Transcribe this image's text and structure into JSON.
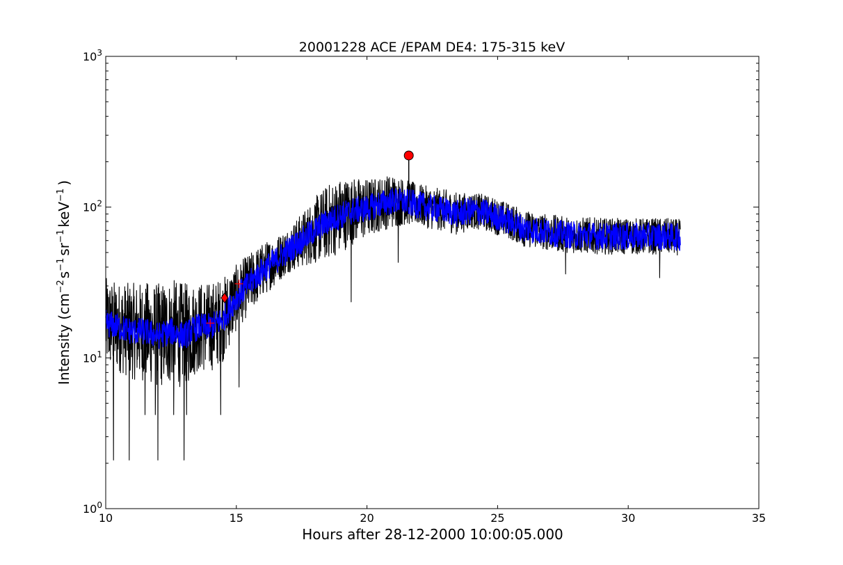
{
  "chart_data": {
    "type": "line",
    "title": "20001228 ACE /EPAM DE4: 175-315 keV",
    "xlabel": "Hours after 28-12-2000 10:00:05.000",
    "ylabel": "Intensity (cm⁻² s⁻¹ sr⁻¹ keV⁻¹ )",
    "ylabel_parts": {
      "p1": "Intensity (cm",
      "e1": "−2",
      "p2": "s",
      "e2": "−1",
      "p3": "sr",
      "e3": "−1",
      "p4": "keV",
      "e4": "−1",
      "p5": ")"
    },
    "xlim": [
      10,
      35
    ],
    "ylim": [
      1,
      1000
    ],
    "yscale": "log",
    "grid": false,
    "x_tick_labels": [
      "10",
      "15",
      "20",
      "25",
      "30",
      "35"
    ],
    "y_tick_labels": [
      {
        "base": "10",
        "exp": "0"
      },
      {
        "base": "10",
        "exp": "1"
      },
      {
        "base": "10",
        "exp": "2"
      },
      {
        "base": "10",
        "exp": "3"
      }
    ],
    "series": [
      {
        "color": "#000000",
        "style": "raw-noisy",
        "x": [
          10.0,
          10.5,
          11.0,
          11.5,
          12.0,
          12.5,
          13.0,
          13.5,
          14.0,
          14.5,
          15.0,
          15.5,
          16.0,
          16.5,
          17.0,
          17.5,
          18.0,
          18.5,
          19.0,
          19.5,
          20.0,
          20.5,
          21.0,
          21.5,
          22.0,
          22.5,
          23.0,
          23.5,
          24.0,
          24.5,
          25.0,
          25.5,
          26.0,
          26.5,
          27.0,
          27.5,
          28.0,
          28.5,
          29.0,
          29.5,
          30.0,
          30.5,
          31.0,
          31.5,
          32.0
        ],
        "y": [
          17,
          16,
          15,
          15,
          14,
          15,
          14,
          16,
          16,
          18,
          25,
          31,
          38,
          44,
          52,
          60,
          70,
          80,
          88,
          95,
          98,
          105,
          110,
          108,
          103,
          98,
          95,
          90,
          95,
          92,
          86,
          80,
          72,
          70,
          68,
          66,
          65,
          65,
          64,
          64,
          64,
          64,
          64,
          64,
          63
        ],
        "spread_dex": [
          0.3,
          0.3,
          0.32,
          0.33,
          0.35,
          0.35,
          0.35,
          0.3,
          0.3,
          0.28,
          0.22,
          0.2,
          0.18,
          0.16,
          0.15,
          0.18,
          0.22,
          0.25,
          0.25,
          0.22,
          0.2,
          0.18,
          0.18,
          0.15,
          0.14,
          0.14,
          0.14,
          0.14,
          0.12,
          0.12,
          0.12,
          0.12,
          0.12,
          0.12,
          0.12,
          0.12,
          0.12,
          0.12,
          0.12,
          0.12,
          0.12,
          0.12,
          0.12,
          0.12,
          0.12
        ],
        "dips": [
          [
            10.3,
            2.1
          ],
          [
            10.9,
            2.1
          ],
          [
            12.0,
            2.1
          ],
          [
            13.0,
            2.1
          ],
          [
            11.5,
            4.2
          ],
          [
            11.9,
            4.2
          ],
          [
            12.6,
            4.2
          ],
          [
            13.1,
            4.2
          ],
          [
            14.4,
            4.2
          ],
          [
            15.1,
            6.4
          ],
          [
            19.4,
            23.5
          ],
          [
            21.2,
            43
          ],
          [
            27.6,
            36
          ],
          [
            31.2,
            34
          ]
        ]
      },
      {
        "color": "#0000ff",
        "style": "smoothed",
        "x": [
          10.0,
          10.5,
          11.0,
          11.5,
          12.0,
          12.5,
          13.0,
          13.5,
          14.0,
          14.5,
          15.0,
          15.5,
          16.0,
          16.5,
          17.0,
          17.5,
          18.0,
          18.5,
          19.0,
          19.5,
          20.0,
          20.5,
          21.0,
          21.5,
          22.0,
          22.5,
          23.0,
          23.5,
          24.0,
          24.5,
          25.0,
          25.5,
          26.0,
          26.5,
          27.0,
          27.5,
          28.0,
          28.5,
          29.0,
          29.5,
          30.0,
          30.5,
          31.0,
          31.5,
          32.0
        ],
        "y": [
          17,
          16,
          15,
          15,
          14,
          15,
          14,
          16,
          16,
          18,
          25,
          31,
          38,
          44,
          52,
          60,
          70,
          80,
          88,
          95,
          98,
          105,
          110,
          108,
          103,
          98,
          95,
          90,
          95,
          92,
          86,
          80,
          72,
          70,
          68,
          66,
          65,
          65,
          64,
          64,
          64,
          64,
          64,
          64,
          63
        ],
        "spread_dex": 0.09
      }
    ],
    "markers": [
      {
        "kind": "circle",
        "x": 21.6,
        "y": 220,
        "color": "#ff0000",
        "stem_to": 100
      },
      {
        "kind": "diamond",
        "x": 14.55,
        "y": 25,
        "color": "#ff0000"
      },
      {
        "kind": "plus",
        "x": 14.0,
        "y": 17,
        "color": "#ff0000"
      },
      {
        "kind": "plus",
        "x": 15.1,
        "y": 31,
        "color": "#ff0000"
      }
    ]
  }
}
